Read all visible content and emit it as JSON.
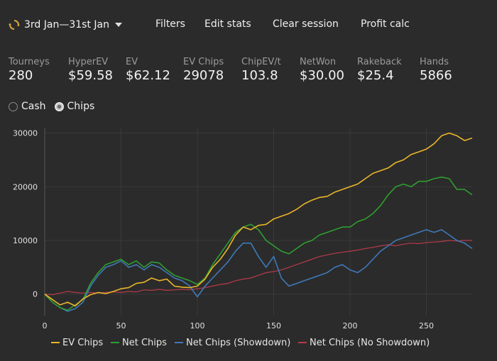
{
  "toolbar": {
    "date_range": "3rd Jan—31st Jan",
    "refresh_icon": "refresh-icon",
    "dropdown_icon": "chevron-down-icon",
    "filters_label": "Filters",
    "edit_stats_label": "Edit stats",
    "clear_session_label": "Clear session",
    "profit_calc_label": "Profit calc"
  },
  "stats": [
    {
      "label": "Tourneys",
      "value": "280"
    },
    {
      "label": "HyperEV",
      "value": "$59.58"
    },
    {
      "label": "EV",
      "value": "$62.12"
    },
    {
      "label": "EV Chips",
      "value": "29078"
    },
    {
      "label": "ChipEV/t",
      "value": "103.8"
    },
    {
      "label": "NetWon",
      "value": "$30.00"
    },
    {
      "label": "Rakeback",
      "value": "$25.4"
    },
    {
      "label": "Hands",
      "value": "5866"
    }
  ],
  "modes": {
    "cash_label": "Cash",
    "chips_label": "Chips",
    "selected": "Chips"
  },
  "colors": {
    "background": "#2b2b2b",
    "ev_chips": "#e9b52a",
    "net_chips": "#2f9e2f",
    "net_showdown": "#3f79b8",
    "net_no_showdown": "#b83a4a",
    "grid": "#3a3a3a"
  },
  "chart_data": {
    "type": "line",
    "xlim": [
      0,
      280
    ],
    "ylim": [
      -4000,
      31000
    ],
    "xticks": [
      0,
      50,
      100,
      150,
      200,
      250
    ],
    "yticks": [
      0,
      10000,
      20000,
      30000
    ],
    "legend_position": "bottom",
    "series": [
      {
        "name": "EV Chips",
        "color": "#e9b52a",
        "points": [
          [
            0,
            0
          ],
          [
            5,
            -1000
          ],
          [
            10,
            -2000
          ],
          [
            15,
            -1500
          ],
          [
            20,
            -2200
          ],
          [
            25,
            -900
          ],
          [
            30,
            -100
          ],
          [
            35,
            300
          ],
          [
            40,
            100
          ],
          [
            45,
            500
          ],
          [
            50,
            1000
          ],
          [
            55,
            1200
          ],
          [
            60,
            2000
          ],
          [
            65,
            2200
          ],
          [
            70,
            3000
          ],
          [
            75,
            2500
          ],
          [
            80,
            2800
          ],
          [
            85,
            1500
          ],
          [
            90,
            1300
          ],
          [
            95,
            1200
          ],
          [
            100,
            1500
          ],
          [
            105,
            2800
          ],
          [
            110,
            5000
          ],
          [
            115,
            6500
          ],
          [
            120,
            8500
          ],
          [
            125,
            11000
          ],
          [
            130,
            12500
          ],
          [
            135,
            12000
          ],
          [
            140,
            12800
          ],
          [
            145,
            13000
          ],
          [
            150,
            14000
          ],
          [
            155,
            14500
          ],
          [
            160,
            15000
          ],
          [
            165,
            15800
          ],
          [
            170,
            16800
          ],
          [
            175,
            17500
          ],
          [
            180,
            18000
          ],
          [
            185,
            18200
          ],
          [
            190,
            19000
          ],
          [
            195,
            19500
          ],
          [
            200,
            20000
          ],
          [
            205,
            20500
          ],
          [
            210,
            21500
          ],
          [
            215,
            22500
          ],
          [
            220,
            23000
          ],
          [
            225,
            23500
          ],
          [
            230,
            24500
          ],
          [
            235,
            25000
          ],
          [
            240,
            26000
          ],
          [
            245,
            26500
          ],
          [
            250,
            27000
          ],
          [
            255,
            28000
          ],
          [
            260,
            29500
          ],
          [
            265,
            30000
          ],
          [
            270,
            29500
          ],
          [
            275,
            28600
          ],
          [
            280,
            29078
          ]
        ]
      },
      {
        "name": "Net Chips",
        "color": "#2f9e2f",
        "points": [
          [
            0,
            0
          ],
          [
            5,
            -1500
          ],
          [
            10,
            -2500
          ],
          [
            15,
            -3000
          ],
          [
            20,
            -2000
          ],
          [
            25,
            -1000
          ],
          [
            30,
            2000
          ],
          [
            35,
            4000
          ],
          [
            40,
            5500
          ],
          [
            45,
            6000
          ],
          [
            50,
            6500
          ],
          [
            55,
            5500
          ],
          [
            60,
            6200
          ],
          [
            65,
            5000
          ],
          [
            70,
            6000
          ],
          [
            75,
            5800
          ],
          [
            80,
            4500
          ],
          [
            85,
            3500
          ],
          [
            90,
            3000
          ],
          [
            95,
            2500
          ],
          [
            100,
            1800
          ],
          [
            105,
            3000
          ],
          [
            110,
            5500
          ],
          [
            115,
            7500
          ],
          [
            120,
            9500
          ],
          [
            125,
            11500
          ],
          [
            130,
            12500
          ],
          [
            135,
            13000
          ],
          [
            140,
            12000
          ],
          [
            145,
            10000
          ],
          [
            150,
            9000
          ],
          [
            155,
            8000
          ],
          [
            160,
            7500
          ],
          [
            165,
            8500
          ],
          [
            170,
            9500
          ],
          [
            175,
            10000
          ],
          [
            180,
            11000
          ],
          [
            185,
            11500
          ],
          [
            190,
            12000
          ],
          [
            195,
            12500
          ],
          [
            200,
            12500
          ],
          [
            205,
            13500
          ],
          [
            210,
            14000
          ],
          [
            215,
            15000
          ],
          [
            220,
            16500
          ],
          [
            225,
            18500
          ],
          [
            230,
            20000
          ],
          [
            235,
            20500
          ],
          [
            240,
            20000
          ],
          [
            245,
            21000
          ],
          [
            250,
            21000
          ],
          [
            255,
            21500
          ],
          [
            260,
            21800
          ],
          [
            265,
            21500
          ],
          [
            270,
            19500
          ],
          [
            275,
            19500
          ],
          [
            280,
            18500
          ]
        ]
      },
      {
        "name": "Net Chips (Showdown)",
        "color": "#3f79b8",
        "points": [
          [
            0,
            0
          ],
          [
            5,
            -1500
          ],
          [
            10,
            -2500
          ],
          [
            15,
            -3200
          ],
          [
            20,
            -2700
          ],
          [
            25,
            -1500
          ],
          [
            30,
            1500
          ],
          [
            35,
            3500
          ],
          [
            40,
            5000
          ],
          [
            45,
            5500
          ],
          [
            50,
            6200
          ],
          [
            55,
            5000
          ],
          [
            60,
            5500
          ],
          [
            65,
            4500
          ],
          [
            70,
            5500
          ],
          [
            75,
            5000
          ],
          [
            80,
            4000
          ],
          [
            85,
            3000
          ],
          [
            90,
            2500
          ],
          [
            95,
            1500
          ],
          [
            100,
            -500
          ],
          [
            105,
            1500
          ],
          [
            110,
            3000
          ],
          [
            115,
            4500
          ],
          [
            120,
            6000
          ],
          [
            125,
            8000
          ],
          [
            130,
            9500
          ],
          [
            135,
            9500
          ],
          [
            140,
            7000
          ],
          [
            145,
            5000
          ],
          [
            150,
            7000
          ],
          [
            155,
            3000
          ],
          [
            160,
            1500
          ],
          [
            165,
            2000
          ],
          [
            170,
            2500
          ],
          [
            175,
            3000
          ],
          [
            180,
            3500
          ],
          [
            185,
            4000
          ],
          [
            190,
            5000
          ],
          [
            195,
            5500
          ],
          [
            200,
            4500
          ],
          [
            205,
            4000
          ],
          [
            210,
            5000
          ],
          [
            215,
            6500
          ],
          [
            220,
            8000
          ],
          [
            225,
            9000
          ],
          [
            230,
            10000
          ],
          [
            235,
            10500
          ],
          [
            240,
            11000
          ],
          [
            245,
            11500
          ],
          [
            250,
            12000
          ],
          [
            255,
            11500
          ],
          [
            260,
            12000
          ],
          [
            265,
            11000
          ],
          [
            270,
            10000
          ],
          [
            275,
            9500
          ],
          [
            280,
            8500
          ]
        ]
      },
      {
        "name": "Net Chips (No Showdown)",
        "color": "#b83a4a",
        "points": [
          [
            0,
            0
          ],
          [
            5,
            -100
          ],
          [
            10,
            200
          ],
          [
            15,
            500
          ],
          [
            20,
            300
          ],
          [
            25,
            200
          ],
          [
            30,
            300
          ],
          [
            35,
            200
          ],
          [
            40,
            300
          ],
          [
            45,
            400
          ],
          [
            50,
            300
          ],
          [
            55,
            500
          ],
          [
            60,
            400
          ],
          [
            65,
            800
          ],
          [
            70,
            700
          ],
          [
            75,
            900
          ],
          [
            80,
            700
          ],
          [
            85,
            800
          ],
          [
            90,
            900
          ],
          [
            95,
            800
          ],
          [
            100,
            1000
          ],
          [
            105,
            1200
          ],
          [
            110,
            1500
          ],
          [
            115,
            1800
          ],
          [
            120,
            2000
          ],
          [
            125,
            2500
          ],
          [
            130,
            2800
          ],
          [
            135,
            3000
          ],
          [
            140,
            3500
          ],
          [
            145,
            4000
          ],
          [
            150,
            4200
          ],
          [
            155,
            4500
          ],
          [
            160,
            5000
          ],
          [
            165,
            5500
          ],
          [
            170,
            6000
          ],
          [
            175,
            6500
          ],
          [
            180,
            7000
          ],
          [
            185,
            7300
          ],
          [
            190,
            7600
          ],
          [
            195,
            7800
          ],
          [
            200,
            8000
          ],
          [
            205,
            8200
          ],
          [
            210,
            8500
          ],
          [
            215,
            8700
          ],
          [
            220,
            9000
          ],
          [
            225,
            9200
          ],
          [
            230,
            9000
          ],
          [
            235,
            9300
          ],
          [
            240,
            9500
          ],
          [
            245,
            9400
          ],
          [
            250,
            9600
          ],
          [
            255,
            9700
          ],
          [
            260,
            9800
          ],
          [
            265,
            10000
          ],
          [
            270,
            9900
          ],
          [
            275,
            10000
          ],
          [
            280,
            10000
          ]
        ]
      }
    ]
  }
}
